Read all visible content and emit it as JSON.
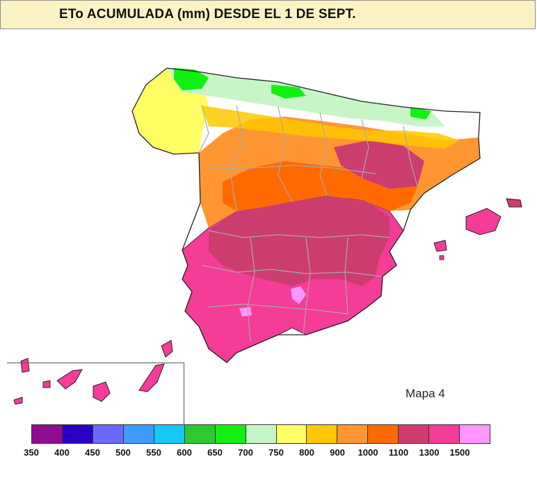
{
  "title": "ETo  ACUMULADA (mm) DESDE EL 1 DE SEPT.",
  "map_label": "Mapa 4",
  "legend": {
    "colors": [
      "#8e0e8e",
      "#2a00c8",
      "#6a6aff",
      "#3f9bff",
      "#15c8f5",
      "#2fc82f",
      "#12f012",
      "#c8f5c8",
      "#ffff64",
      "#ffc800",
      "#ff9632",
      "#ff6a00",
      "#cd3c6e",
      "#f53c96",
      "#ff96ff"
    ],
    "labels": [
      "350",
      "400",
      "450",
      "500",
      "550",
      "600",
      "650",
      "700",
      "750",
      "800",
      "900",
      "1000",
      "1100",
      "1300",
      "1500"
    ]
  },
  "regions": {
    "north_coast": "#c8f5c8",
    "galicia": "#ffff64",
    "cantabria_green": "#12f012",
    "north_plateau": "#ff9632",
    "orange_band": "#ff6a00",
    "central": "#cd3c6e",
    "south": "#f53c96",
    "high": "#ff96ff"
  }
}
